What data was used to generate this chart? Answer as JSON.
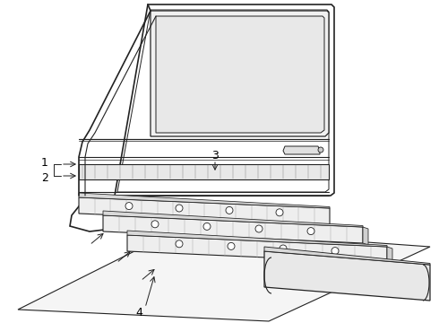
{
  "background_color": "#ffffff",
  "line_color": "#222222",
  "label_color": "#000000",
  "figsize": [
    4.9,
    3.6
  ],
  "dpi": 100,
  "label_fontsize": 8
}
